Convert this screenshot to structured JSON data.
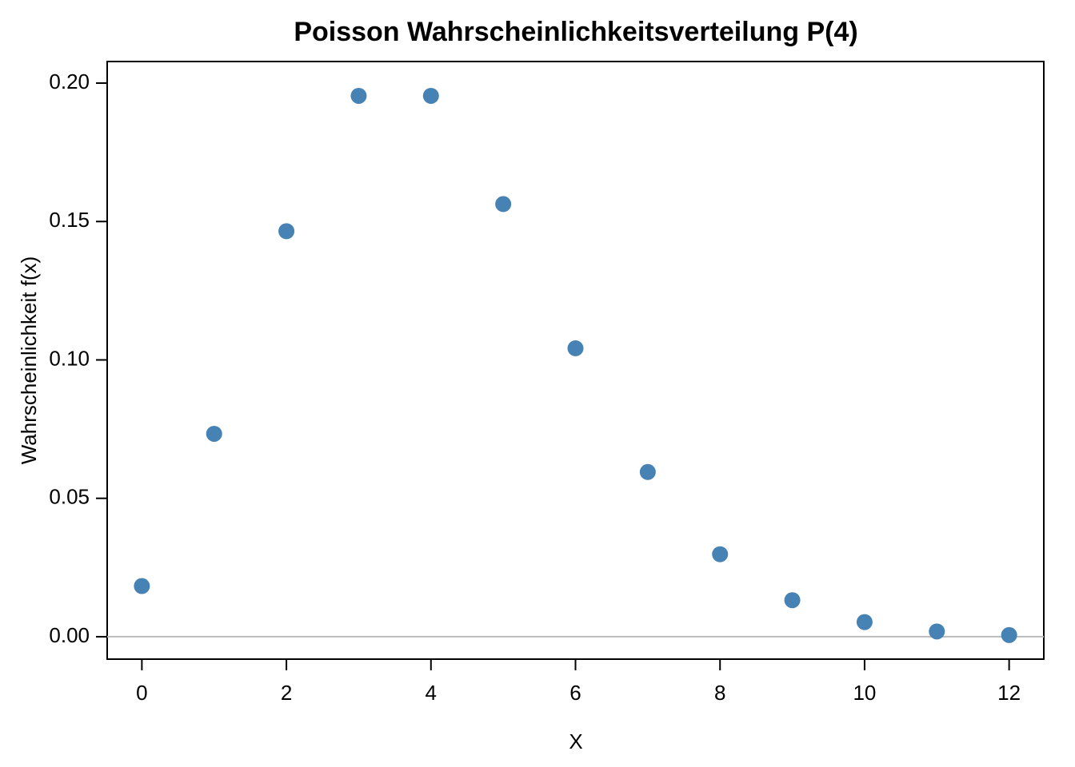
{
  "chart_data": {
    "type": "scatter",
    "title": "Poisson Wahrscheinlichkeitsverteilung P(4)",
    "x_label": "X",
    "y_label": "Wahrscheinlichkeit f(x)",
    "x": [
      0,
      1,
      2,
      3,
      4,
      5,
      6,
      7,
      8,
      9,
      10,
      11,
      12
    ],
    "values": [
      0.0183,
      0.0733,
      0.1465,
      0.1954,
      0.1954,
      0.1563,
      0.1042,
      0.0595,
      0.0298,
      0.0132,
      0.0053,
      0.0019,
      0.0006
    ],
    "color": "#4682b4",
    "reference_line": 0,
    "xlim": [
      -0.48,
      12.48
    ],
    "ylim": [
      -0.0081,
      0.2078
    ],
    "xticks": [
      0,
      2,
      4,
      6,
      8,
      10,
      12
    ],
    "yticks": [
      {
        "value": 0,
        "label": "0.00"
      },
      {
        "value": 0.05,
        "label": "0.05"
      },
      {
        "value": 0.1,
        "label": "0.10"
      },
      {
        "value": 0.15,
        "label": "0.15"
      },
      {
        "value": 0.2,
        "label": "0.20"
      }
    ]
  }
}
